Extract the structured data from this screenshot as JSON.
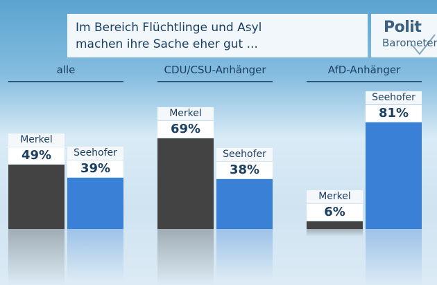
{
  "title": {
    "line1": "Im Bereich Flüchtlinge und Asyl",
    "line2": "machen ihre Sache eher gut ..."
  },
  "logo": {
    "top": "Polit",
    "bottom": "Barometer"
  },
  "colors": {
    "merkel": "#434343",
    "seehofer": "#3a80d6",
    "text": "#1b3f63"
  },
  "chart_data": {
    "type": "bar",
    "title": "Im Bereich Flüchtlinge und Asyl machen ihre Sache eher gut ...",
    "categories": [
      "alle",
      "CDU/CSU-Anhänger",
      "AfD-Anhänger"
    ],
    "series": [
      {
        "name": "Merkel",
        "values": [
          49,
          69,
          6
        ],
        "labels": [
          "49%",
          "69%",
          "6%"
        ]
      },
      {
        "name": "Seehofer",
        "values": [
          39,
          38,
          81
        ],
        "labels": [
          "39%",
          "38%",
          "81%"
        ]
      }
    ],
    "unit": "%",
    "ylim": [
      0,
      100
    ],
    "grid": false
  }
}
